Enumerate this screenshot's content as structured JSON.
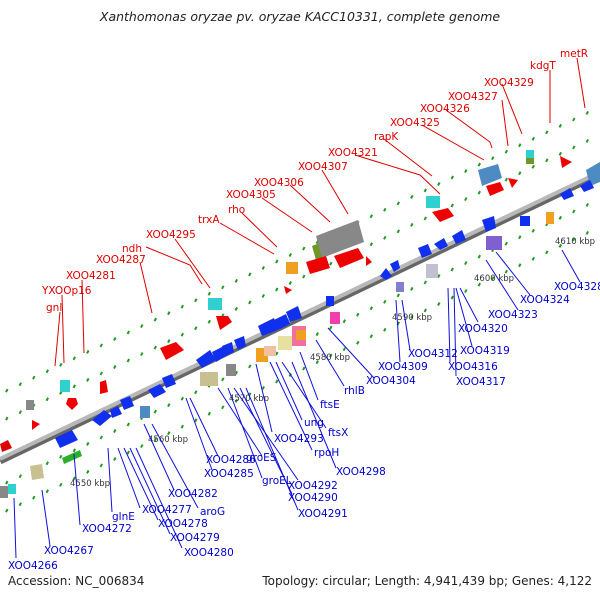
{
  "title": "Xanthomonas oryzae pv. oryzae KACC10331, complete genome",
  "footer": {
    "accession": "Accession: NC_006834",
    "summary": "Topology: circular; Length: 4,941,439 bp; Genes: 4,122"
  },
  "scale_labels": [
    "4550 kbp",
    "4560 kbp",
    "4570 kbp",
    "4580 kbp",
    "4590 kbp",
    "4600 kbp",
    "4610 kbp"
  ],
  "top_labels": [
    "gnl",
    "YXOOp16",
    "XOO4281",
    "XOO4287",
    "ndh",
    "XOO4295",
    "trxA",
    "rho",
    "XOO4305",
    "XOO4306",
    "XOO4307",
    "XOO4321",
    "rapK",
    "XOO4325",
    "XOO4326",
    "XOO4327",
    "XOO4329",
    "kdgT",
    "metR"
  ],
  "bottom_labels": [
    "XOO4266",
    "XOO4267",
    "XOO4272",
    "glnE",
    "XOO4277",
    "XOO4278",
    "XOO4279",
    "XOO4280",
    "XOO4282",
    "aroG",
    "XOO4285",
    "XOO4286",
    "groES",
    "groEL",
    "XOO4292",
    "XOO4290",
    "XOO4291",
    "XOO4293",
    "rpoH",
    "ung",
    "ftsX",
    "XOO4298",
    "ftsE",
    "rhlB",
    "XOO4304",
    "XOO4309",
    "XOO4312",
    "XOO4316",
    "XOO4317",
    "XOO4319",
    "XOO4320",
    "XOO4323",
    "XOO4324",
    "XOO4328"
  ],
  "colors": {
    "forward_gene": "#ee0000",
    "reverse_gene": "#0000ee",
    "label_top": "#dd0000",
    "label_bottom": "#0000cc",
    "tick": "#229922",
    "backbone": "#8c8c8c"
  }
}
